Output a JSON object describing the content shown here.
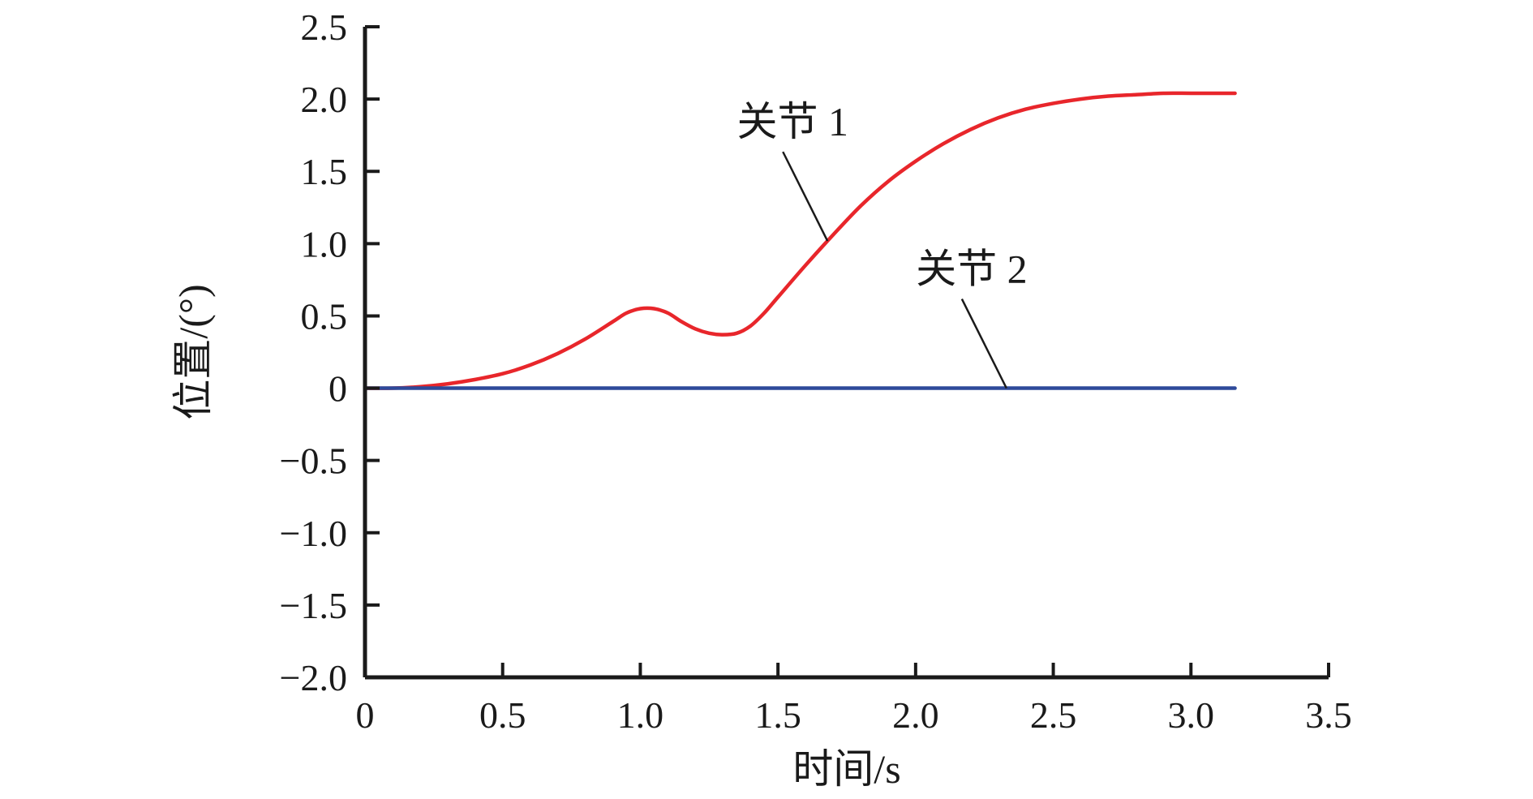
{
  "chart_data": {
    "type": "line",
    "xlabel": "时间/s",
    "ylabel": "位置/(°)",
    "xlim": [
      0,
      3.5
    ],
    "ylim": [
      -2.0,
      2.5
    ],
    "x_ticks": [
      "0",
      "0.5",
      "1.0",
      "1.5",
      "2.0",
      "2.5",
      "3.0",
      "3.5"
    ],
    "y_ticks": [
      "−2.0",
      "−1.5",
      "−1.0",
      "−0.5",
      "0",
      "0.5",
      "1.0",
      "1.5",
      "2.0",
      "2.5"
    ],
    "grid": false,
    "legend": "none",
    "series": [
      {
        "name": "关节 1",
        "color": "#e8262b",
        "x": [
          0.0,
          0.1,
          0.2,
          0.3,
          0.4,
          0.5,
          0.6,
          0.7,
          0.8,
          0.9,
          0.95,
          1.0,
          1.05,
          1.1,
          1.15,
          1.2,
          1.25,
          1.3,
          1.35,
          1.4,
          1.45,
          1.5,
          1.6,
          1.7,
          1.8,
          1.9,
          2.0,
          2.1,
          2.2,
          2.3,
          2.4,
          2.5,
          2.6,
          2.7,
          2.8,
          2.9,
          3.0,
          3.1,
          3.16
        ],
        "y": [
          0.0,
          0.0,
          0.01,
          0.03,
          0.06,
          0.1,
          0.16,
          0.24,
          0.34,
          0.46,
          0.52,
          0.55,
          0.55,
          0.52,
          0.46,
          0.41,
          0.38,
          0.37,
          0.38,
          0.43,
          0.52,
          0.63,
          0.85,
          1.06,
          1.26,
          1.43,
          1.57,
          1.69,
          1.79,
          1.87,
          1.93,
          1.97,
          2.0,
          2.02,
          2.03,
          2.04,
          2.04,
          2.04,
          2.04
        ]
      },
      {
        "name": "关节 2",
        "color": "#2e4a9a",
        "x": [
          0.0,
          3.16
        ],
        "y": [
          0.0,
          0.0
        ]
      }
    ],
    "annotations": [
      {
        "text": "关节 1",
        "series": 0,
        "x": 1.68
      },
      {
        "text": "关节 2",
        "series": 1,
        "x": 2.33
      }
    ]
  }
}
